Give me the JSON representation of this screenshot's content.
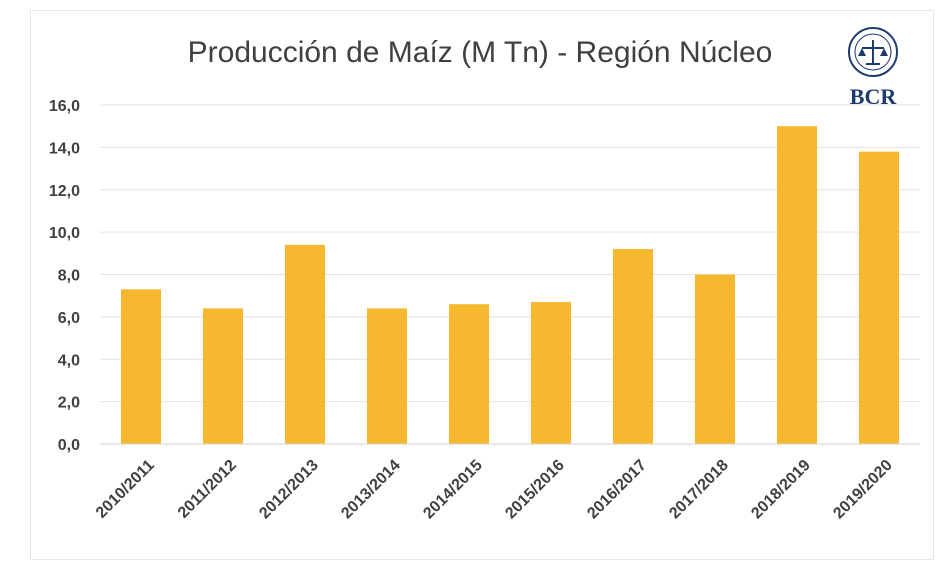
{
  "chart_data": {
    "type": "bar",
    "title": "Producción de Maíz (M Tn) - Región Núcleo",
    "categories": [
      "2010/2011",
      "2011/2012",
      "2012/2013",
      "2013/2014",
      "2014/2015",
      "2015/2016",
      "2016/2017",
      "2017/2018",
      "2018/2019",
      "2019/2020"
    ],
    "values": [
      7.3,
      6.4,
      9.4,
      6.4,
      6.6,
      6.7,
      9.2,
      8.0,
      15.0,
      13.8
    ],
    "ylim": [
      0,
      16
    ],
    "yticks": [
      "0,0",
      "2,0",
      "4,0",
      "6,0",
      "8,0",
      "10,0",
      "12,0",
      "14,0",
      "16,0"
    ],
    "grid": true,
    "bar_color": "#F5B82E"
  },
  "logo": {
    "text": "BCR",
    "color": "#1f3a6e"
  }
}
